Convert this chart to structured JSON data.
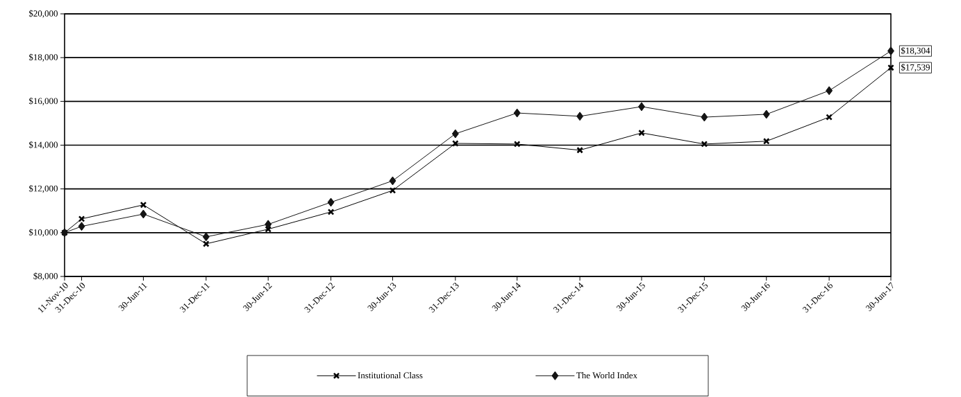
{
  "chart_data": {
    "type": "line",
    "x": [
      "2010-11-11",
      "2010-12-31",
      "2011-06-30",
      "2011-12-31",
      "2012-06-30",
      "2012-12-31",
      "2013-06-30",
      "2013-12-31",
      "2014-06-30",
      "2014-12-31",
      "2015-06-30",
      "2015-12-31",
      "2016-06-30",
      "2016-12-31",
      "2017-06-30"
    ],
    "series": [
      {
        "name": "Institutional Class",
        "color": "#000000",
        "marker": "cross",
        "values": [
          10000,
          10630,
          11270,
          9490,
          10160,
          10950,
          11930,
          14080,
          14050,
          13770,
          14560,
          14050,
          14180,
          15280,
          17539
        ]
      },
      {
        "name": "The World Index",
        "color": "#141414",
        "marker": "diamond",
        "values": [
          10000,
          10290,
          10850,
          9810,
          10380,
          11390,
          12370,
          14520,
          15470,
          15320,
          15760,
          15280,
          15410,
          16490,
          18304
        ]
      }
    ],
    "xlim": [
      "2010-11-11",
      "2017-06-30"
    ],
    "xticks": [
      {
        "value": "2010-11-11",
        "label": "11-Nov-10"
      },
      {
        "value": "2010-12-31",
        "label": "31-Dec-10"
      },
      {
        "value": "2011-06-30",
        "label": "30-Jun-11"
      },
      {
        "value": "2011-12-31",
        "label": "31-Dec-11"
      },
      {
        "value": "2012-06-30",
        "label": "30-Jun-12"
      },
      {
        "value": "2012-12-31",
        "label": "31-Dec-12"
      },
      {
        "value": "2013-06-30",
        "label": "30-Jun-13"
      },
      {
        "value": "2013-12-31",
        "label": "31-Dec-13"
      },
      {
        "value": "2014-06-30",
        "label": "30-Jun-14"
      },
      {
        "value": "2014-12-31",
        "label": "31-Dec-14"
      },
      {
        "value": "2015-06-30",
        "label": "30-Jun-15"
      },
      {
        "value": "2015-12-31",
        "label": "31-Dec-15"
      },
      {
        "value": "2016-06-30",
        "label": "30-Jun-16"
      },
      {
        "value": "2016-12-31",
        "label": "31-Dec-16"
      },
      {
        "value": "2017-06-30",
        "label": "30-Jun-17"
      }
    ],
    "ylim": [
      8000,
      20000
    ],
    "yticks": [
      {
        "value": 8000,
        "label": "$8,000"
      },
      {
        "value": 10000,
        "label": "$10,000"
      },
      {
        "value": 12000,
        "label": "$12,000"
      },
      {
        "value": 14000,
        "label": "$14,000"
      },
      {
        "value": 16000,
        "label": "$16,000"
      },
      {
        "value": 18000,
        "label": "$18,000"
      },
      {
        "value": 20000,
        "label": "$20,000"
      }
    ],
    "annotations": [
      {
        "text": "$18,304",
        "x": "2017-06-30",
        "y": 18304
      },
      {
        "text": "$17,539",
        "x": "2017-06-30",
        "y": 17539
      }
    ],
    "grid": "y",
    "legend": "bottom"
  }
}
